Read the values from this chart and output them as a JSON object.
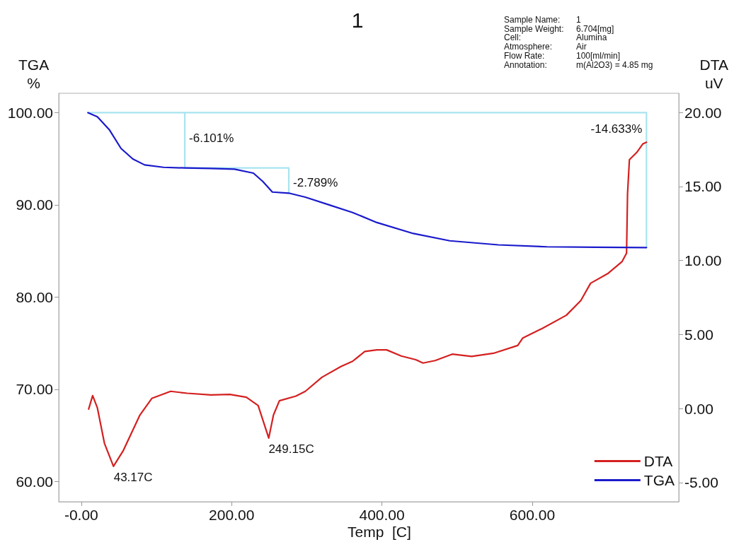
{
  "chart_data": {
    "type": "line",
    "title": "1",
    "xlabel": "Temp  [C]",
    "ylabel": "TGA\n%",
    "y2label": "DTA\nuV",
    "xlim": [
      -30,
      795
    ],
    "xticks": [
      {
        "value": 0,
        "label": "-0.00"
      },
      {
        "value": 200,
        "label": "200.00"
      },
      {
        "value": 400,
        "label": "400.00"
      },
      {
        "value": 600,
        "label": "600.00"
      }
    ],
    "ylim": [
      57.8,
      102.1
    ],
    "yticks": [
      {
        "value": 60,
        "label": "60.00"
      },
      {
        "value": 70,
        "label": "70.00"
      },
      {
        "value": 80,
        "label": "80.00"
      },
      {
        "value": 90,
        "label": "90.00"
      },
      {
        "value": 100,
        "label": "100.00"
      }
    ],
    "y2lim": [
      -6.3,
      21.3
    ],
    "y2ticks": [
      {
        "value": -5,
        "label": "-5.00"
      },
      {
        "value": 0,
        "label": "0.00"
      },
      {
        "value": 5,
        "label": "5.00"
      },
      {
        "value": 10,
        "label": "10.00"
      },
      {
        "value": 15,
        "label": "15.00"
      },
      {
        "value": 20,
        "label": "20.00"
      }
    ],
    "grid": false,
    "legend": "bottom right",
    "marker": "none",
    "line_style": "solid",
    "series": [
      {
        "name": "DTA",
        "color": "#d42020",
        "axis": "y2",
        "x": [
          9.8,
          15.1,
          21.4,
          30.8,
          42.8,
          56,
          78,
          93.8,
          118.9,
          141,
          172.4,
          197.6,
          219.6,
          235.3,
          249.4,
          255.7,
          263.6,
          285.6,
          298.1,
          320.2,
          345.3,
          361,
          377.2,
          393.3,
          406.3,
          425.6,
          445,
          454.7,
          470.8,
          493.5,
          519.3,
          548.4,
          580.7,
          587.2,
          613,
          645.4,
          664.7,
          677.6,
          700.3,
          719.6,
          725.5,
          726.8,
          729.3,
          739,
          747,
          752
        ],
        "values": [
          -0.04,
          0.87,
          0.04,
          -2.35,
          -3.91,
          -2.83,
          -0.44,
          0.68,
          1.16,
          1.03,
          0.92,
          0.95,
          0.76,
          0.2,
          -2.0,
          -0.44,
          0.52,
          0.84,
          1.16,
          2.11,
          2.83,
          3.19,
          3.85,
          3.96,
          3.96,
          3.55,
          3.3,
          3.07,
          3.24,
          3.67,
          3.52,
          3.73,
          4.26,
          4.75,
          5.4,
          6.3,
          7.3,
          8.46,
          9.11,
          9.93,
          10.5,
          14.51,
          16.81,
          17.3,
          17.87,
          17.99
        ]
      },
      {
        "name": "TGA",
        "color": "#1a1acc",
        "x": [
          8.9,
          21.4,
          37.2,
          52.8,
          68.6,
          84.3,
          109.4,
          137.7,
          172.4,
          203.8,
          229,
          241.5,
          254.2,
          276.1,
          298.1,
          329.6,
          361,
          393.3,
          441.8,
          490.3,
          554.9,
          619.5,
          684.1,
          752
        ],
        "values": [
          100,
          99.56,
          98.16,
          96.12,
          94.97,
          94.33,
          94.07,
          94.0,
          93.95,
          93.87,
          93.44,
          92.54,
          91.39,
          91.27,
          90.83,
          90.0,
          89.17,
          88.08,
          86.89,
          86.1,
          85.66,
          85.45,
          85.4,
          85.37
        ]
      },
      {
        "color": "#a8e4f0",
        "x": [
          8.9,
          752,
          752
        ],
        "values": [
          100,
          100,
          85.37
        ]
      },
      {
        "color": "#a8e4f0",
        "x": [
          137.7,
          137.7,
          276.1,
          276.1
        ],
        "values": [
          100,
          94.0,
          94.0,
          91.27
        ]
      }
    ],
    "annotations": [
      {
        "text": "-6.101%",
        "x": 137.7,
        "y": 97.2
      },
      {
        "text": "-2.789%",
        "x": 276.1,
        "y": 92.4
      },
      {
        "text": "-14.633%",
        "x": 752,
        "y": 98.2
      },
      {
        "text": "43.17C",
        "x": 43.17,
        "y": 61.7
      },
      {
        "text": "249.15C",
        "x": 249.15,
        "y": 64.8
      },
      "Sample Name: 1",
      "Sample Weight: 6.704[mg]",
      "Cell: Alumina",
      "Atmosphere: Air",
      "Flow Rate: 100[ml/min]",
      "Annotation: m(Al2O3) = 4.85 mg"
    ]
  }
}
